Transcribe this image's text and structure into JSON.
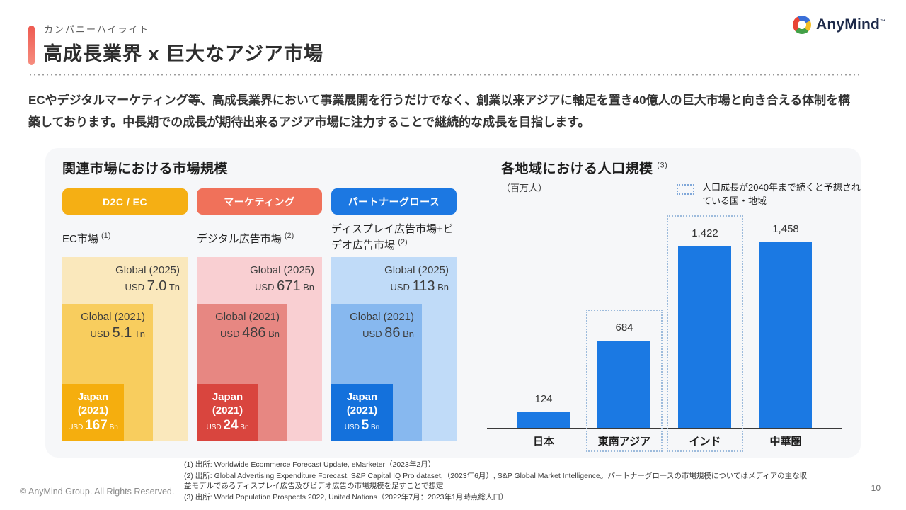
{
  "header": {
    "kicker": "カンパニーハイライト",
    "title": "高成長業界 x 巨大なアジア市場",
    "brand": "AnyMind",
    "brand_tm": "™"
  },
  "intro": "ECやデジタルマーケティング等、高成長業界において事業展開を行うだけでなく、創業以来アジアに軸足を置き40億人の巨大市場と向き合える体制を構築しております。中長期での成長が期待出来るアジア市場に注力することで継続的な成長を目指します。",
  "market_panel": {
    "title": "関連市場における市場規模",
    "groups": [
      {
        "pill": "D2C / EC",
        "market": "EC市場",
        "sup": "(1)",
        "outer": {
          "label": "Global (2025)",
          "currency": "USD",
          "value": "7.0",
          "unit": "Tn"
        },
        "mid": {
          "label": "Global (2021)",
          "currency": "USD",
          "value": "5.1",
          "unit": "Tn"
        },
        "japan": {
          "line1": "Japan",
          "line2": "(2021)",
          "currency": "USD",
          "value": "167",
          "unit": "Bn"
        }
      },
      {
        "pill": "マーケティング",
        "market": "デジタル広告市場",
        "sup": "(2)",
        "outer": {
          "label": "Global (2025)",
          "currency": "USD",
          "value": "671",
          "unit": "Bn"
        },
        "mid": {
          "label": "Global (2021)",
          "currency": "USD",
          "value": "486",
          "unit": "Bn"
        },
        "japan": {
          "line1": "Japan",
          "line2": "(2021)",
          "currency": "USD",
          "value": "24",
          "unit": "Bn"
        }
      },
      {
        "pill": "パートナーグロース",
        "market": "ディスプレイ広告市場+ビデオ広告市場",
        "sup": "(2)",
        "outer": {
          "label": "Global (2025)",
          "currency": "USD",
          "value": "113",
          "unit": "Bn"
        },
        "mid": {
          "label": "Global (2021)",
          "currency": "USD",
          "value": "86",
          "unit": "Bn"
        },
        "japan": {
          "line1": "Japan",
          "line2": "(2021)",
          "currency": "USD",
          "value": "5",
          "unit": "Bn"
        }
      }
    ]
  },
  "population_panel": {
    "title": "各地域における人口規模",
    "sup": "(3)",
    "unit": "（百万人）",
    "legend": "人口成長が2040年まで続くと予想されている国・地域"
  },
  "chart_data": [
    {
      "type": "area",
      "title": "関連市場における市場規模",
      "note": "nested squares: market size comparison, bottom-left anchored",
      "groups": [
        {
          "category": "D2C / EC",
          "market": "EC市場 (1)",
          "values": [
            {
              "label": "Global (2025)",
              "value": 7.0,
              "unit": "USD Tn"
            },
            {
              "label": "Global (2021)",
              "value": 5.1,
              "unit": "USD Tn"
            },
            {
              "label": "Japan (2021)",
              "value": 167,
              "unit": "USD Bn"
            }
          ]
        },
        {
          "category": "マーケティング",
          "market": "デジタル広告市場 (2)",
          "values": [
            {
              "label": "Global (2025)",
              "value": 671,
              "unit": "USD Bn"
            },
            {
              "label": "Global (2021)",
              "value": 486,
              "unit": "USD Bn"
            },
            {
              "label": "Japan (2021)",
              "value": 24,
              "unit": "USD Bn"
            }
          ]
        },
        {
          "category": "パートナーグロース",
          "market": "ディスプレイ広告市場+ビデオ広告市場 (2)",
          "values": [
            {
              "label": "Global (2025)",
              "value": 113,
              "unit": "USD Bn"
            },
            {
              "label": "Global (2021)",
              "value": 86,
              "unit": "USD Bn"
            },
            {
              "label": "Japan (2021)",
              "value": 5,
              "unit": "USD Bn"
            }
          ]
        }
      ]
    },
    {
      "type": "bar",
      "title": "各地域における人口規模 (3)",
      "ylabel": "百万人",
      "categories": [
        "日本",
        "東南アジア",
        "インド",
        "中華圏"
      ],
      "values": [
        124,
        684,
        1422,
        1458
      ],
      "value_labels": [
        "124",
        "684",
        "1,422",
        "1,458"
      ],
      "highlighted": [
        false,
        true,
        true,
        false
      ],
      "legend": "人口成長が2040年まで続くと予想されている国・地域",
      "ylim": [
        0,
        1600
      ],
      "grid": false
    }
  ],
  "footer": {
    "copyright": "© AnyMind Group. All Rights Reserved.",
    "page": "10",
    "footnotes": [
      "(1) 出所: Worldwide Ecommerce Forecast Update, eMarketer（2023年2月）",
      "(2) 出所: Global Advertising Expenditure Forecast, S&P Capital IQ Pro dataset,（2023年6月）, S&P Global Market Intelligence。パートナーグロースの市場規模についてはメディアの主な収益モデルであるディスプレイ広告及びビデオ広告の市場規模を足すことで想定",
      "(3) 出所: World Population Prospects 2022, United Nations（2022年7月：2023年1月時点総人口）"
    ]
  },
  "colors": {
    "accent_coral": "#f0655a",
    "pill_yellow": "#f5af14",
    "pill_coral": "#f0715a",
    "pill_blue": "#1c78e2",
    "bar_blue": "#1b79e3",
    "yellow_outer": "#fae8bc",
    "yellow_mid": "#f8cd5e",
    "yellow_inner": "#f5ae0e",
    "pink_outer": "#f9cfd2",
    "pink_mid": "#e78782",
    "pink_inner": "#d9453e",
    "blue_outer": "#c0dbf8",
    "blue_mid": "#87b8ef",
    "blue_inner": "#1471dc",
    "card_bg": "#f6f7f9",
    "dotted_highlight": "#9dbbdc"
  }
}
